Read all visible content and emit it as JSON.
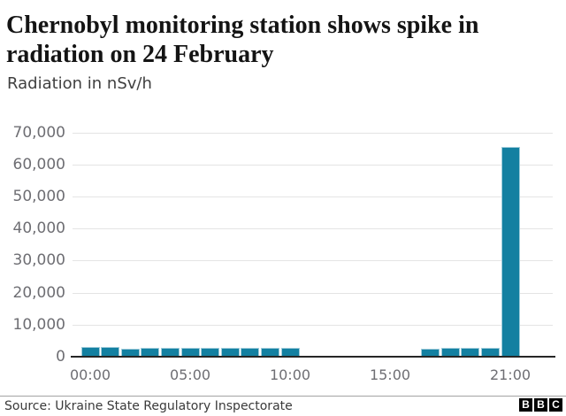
{
  "header": {
    "title_line1": "Chernobyl monitoring station shows spike in",
    "title_line2": "radiation on 24 February",
    "subtitle": "Radiation in nSv/h"
  },
  "chart_data": {
    "type": "bar",
    "title": "Chernobyl monitoring station shows spike in radiation on 24 February",
    "ylabel": "Radiation in nSv/h",
    "categories": [
      "00:00",
      "01:00",
      "02:00",
      "03:00",
      "04:00",
      "05:00",
      "06:00",
      "07:00",
      "08:00",
      "09:00",
      "10:00",
      "11:00",
      "12:00",
      "13:00",
      "14:00",
      "15:00",
      "16:00",
      "17:00",
      "18:00",
      "19:00",
      "20:00",
      "21:00"
    ],
    "values": [
      3000,
      3000,
      2600,
      2900,
      2900,
      2800,
      2700,
      2900,
      2900,
      2800,
      2900,
      0,
      0,
      0,
      0,
      0,
      0,
      2500,
      2800,
      2800,
      2900,
      65500
    ],
    "ylim": [
      0,
      70000
    ],
    "ytick_step": 10000,
    "ytick_labels": [
      "0",
      "10,000",
      "20,000",
      "30,000",
      "40,000",
      "50,000",
      "60,000",
      "70,000"
    ],
    "xticks": [
      {
        "hour": 0,
        "label": "00:00"
      },
      {
        "hour": 5,
        "label": "05:00"
      },
      {
        "hour": 10,
        "label": "10:00"
      },
      {
        "hour": 15,
        "label": "15:00"
      },
      {
        "hour": 21,
        "label": "21:00"
      }
    ],
    "grid": true,
    "legend": "none",
    "bar_color": "#1380A1",
    "gridline_color": "#e4e4e4",
    "axis_color": "#262626",
    "tick_label_color": "#6e6e73"
  },
  "footer": {
    "source": "Source: Ukraine State Regulatory Inspectorate",
    "logo_letters": [
      "B",
      "B",
      "C"
    ]
  }
}
